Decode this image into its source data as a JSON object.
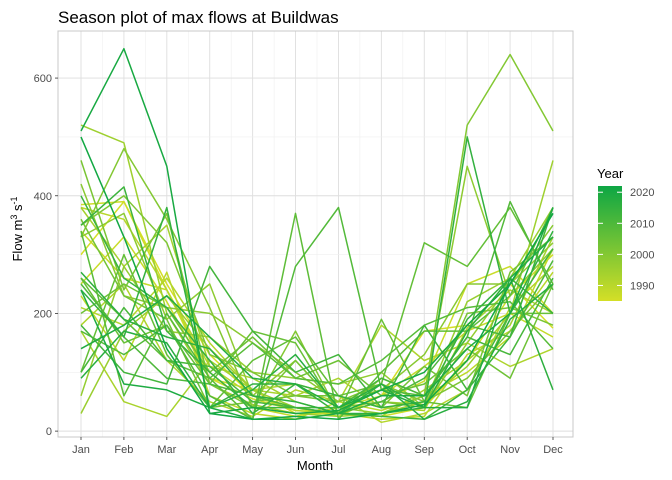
{
  "chart_data": {
    "type": "line",
    "title": "Season plot of max flows at Buildwas",
    "xlabel": "Month",
    "ylabel": {
      "base": "Flow m",
      "sup1": "3",
      "mid": " s",
      "sup2": "-1"
    },
    "categories": [
      "Jan",
      "Feb",
      "Mar",
      "Apr",
      "May",
      "Jun",
      "Jul",
      "Aug",
      "Sep",
      "Oct",
      "Nov",
      "Dec"
    ],
    "y_ticks": [
      0,
      200,
      400,
      600
    ],
    "ylim": [
      -10,
      680
    ],
    "grid": true,
    "legend": {
      "title": "Year",
      "placement": "right",
      "ticks": [
        1990,
        2000,
        2010,
        2020
      ],
      "range": [
        1985,
        2022
      ],
      "color_low": "#d4df27",
      "color_high": "#0da644"
    },
    "series": [
      {
        "year": 1985,
        "values": [
          300,
          390,
          250,
          130,
          60,
          40,
          25,
          60,
          170,
          180,
          250,
          175
        ]
      },
      {
        "year": 1986,
        "values": [
          385,
          390,
          240,
          90,
          55,
          35,
          30,
          25,
          40,
          120,
          230,
          300
        ]
      },
      {
        "year": 1987,
        "values": [
          250,
          330,
          220,
          90,
          70,
          30,
          30,
          50,
          85,
          250,
          280,
          200
        ]
      },
      {
        "year": 1988,
        "values": [
          340,
          260,
          240,
          100,
          40,
          25,
          40,
          60,
          110,
          170,
          200,
          160
        ]
      },
      {
        "year": 1989,
        "values": [
          230,
          120,
          270,
          60,
          30,
          20,
          50,
          35,
          60,
          100,
          160,
          310
        ]
      },
      {
        "year": 1990,
        "values": [
          380,
          360,
          240,
          110,
          60,
          35,
          30,
          20,
          25,
          130,
          170,
          270
        ]
      },
      {
        "year": 1991,
        "values": [
          210,
          180,
          260,
          150,
          70,
          80,
          60,
          15,
          30,
          70,
          210,
          280
        ]
      },
      {
        "year": 1992,
        "values": [
          180,
          250,
          120,
          50,
          25,
          70,
          50,
          180,
          120,
          150,
          110,
          140
        ]
      },
      {
        "year": 1993,
        "values": [
          170,
          50,
          25,
          120,
          70,
          60,
          90,
          40,
          35,
          175,
          240,
          200
        ]
      },
      {
        "year": 1994,
        "values": [
          380,
          280,
          350,
          110,
          90,
          50,
          30,
          25,
          70,
          120,
          180,
          330
        ]
      },
      {
        "year": 1995,
        "values": [
          520,
          490,
          200,
          80,
          45,
          30,
          25,
          30,
          50,
          110,
          200,
          460
        ]
      },
      {
        "year": 1996,
        "values": [
          30,
          170,
          230,
          140,
          70,
          40,
          30,
          50,
          45,
          220,
          260,
          380
        ]
      },
      {
        "year": 1997,
        "values": [
          60,
          280,
          170,
          160,
          100,
          90,
          80,
          100,
          40,
          150,
          250,
          320
        ]
      },
      {
        "year": 1998,
        "values": [
          330,
          370,
          190,
          250,
          60,
          120,
          40,
          30,
          60,
          450,
          230,
          310
        ]
      },
      {
        "year": 1999,
        "values": [
          420,
          230,
          210,
          200,
          150,
          100,
          50,
          70,
          130,
          250,
          250,
          350
        ]
      },
      {
        "year": 2000,
        "values": [
          330,
          480,
          360,
          210,
          40,
          170,
          30,
          90,
          60,
          520,
          640,
          510
        ]
      },
      {
        "year": 2001,
        "values": [
          350,
          400,
          320,
          130,
          100,
          60,
          50,
          80,
          50,
          90,
          170,
          250
        ]
      },
      {
        "year": 2002,
        "values": [
          460,
          240,
          370,
          80,
          40,
          120,
          40,
          50,
          40,
          200,
          210,
          180
        ]
      },
      {
        "year": 2003,
        "values": [
          360,
          230,
          190,
          40,
          50,
          60,
          60,
          40,
          110,
          60,
          270,
          330
        ]
      },
      {
        "year": 2004,
        "values": [
          200,
          250,
          210,
          100,
          160,
          90,
          120,
          60,
          80,
          140,
          90,
          250
        ]
      },
      {
        "year": 2005,
        "values": [
          260,
          150,
          180,
          80,
          170,
          150,
          30,
          190,
          50,
          40,
          200,
          200
        ]
      },
      {
        "year": 2006,
        "values": [
          100,
          300,
          130,
          40,
          120,
          160,
          60,
          80,
          320,
          280,
          380,
          250
        ]
      },
      {
        "year": 2007,
        "values": [
          260,
          190,
          120,
          90,
          20,
          370,
          20,
          100,
          170,
          170,
          230,
          380
        ]
      },
      {
        "year": 2008,
        "values": [
          340,
          60,
          200,
          90,
          150,
          90,
          80,
          120,
          180,
          210,
          220,
          140
        ]
      },
      {
        "year": 2009,
        "values": [
          170,
          130,
          180,
          60,
          20,
          280,
          380,
          70,
          60,
          160,
          390,
          240
        ]
      },
      {
        "year": 2010,
        "values": [
          250,
          160,
          90,
          80,
          60,
          40,
          30,
          50,
          90,
          180,
          160,
          290
        ]
      },
      {
        "year": 2011,
        "values": [
          100,
          210,
          120,
          110,
          50,
          40,
          40,
          90,
          60,
          160,
          130,
          260
        ]
      },
      {
        "year": 2012,
        "values": [
          180,
          100,
          80,
          280,
          170,
          100,
          130,
          40,
          180,
          70,
          200,
          310
        ]
      },
      {
        "year": 2013,
        "values": [
          350,
          415,
          170,
          100,
          40,
          40,
          30,
          25,
          20,
          70,
          160,
          380
        ]
      },
      {
        "year": 2014,
        "values": [
          400,
          260,
          210,
          120,
          30,
          80,
          60,
          40,
          50,
          190,
          260,
          200
        ]
      },
      {
        "year": 2015,
        "values": [
          240,
          160,
          380,
          40,
          80,
          80,
          30,
          80,
          40,
          500,
          200,
          340
        ]
      },
      {
        "year": 2016,
        "values": [
          270,
          190,
          160,
          140,
          60,
          50,
          30,
          30,
          40,
          170,
          260,
          70
        ]
      },
      {
        "year": 2017,
        "values": [
          90,
          170,
          150,
          40,
          70,
          130,
          40,
          80,
          20,
          50,
          190,
          250
        ]
      },
      {
        "year": 2018,
        "values": [
          140,
          180,
          230,
          160,
          90,
          80,
          40,
          70,
          40,
          40,
          260,
          330
        ]
      },
      {
        "year": 2019,
        "values": [
          240,
          80,
          70,
          40,
          20,
          20,
          30,
          60,
          60,
          140,
          200,
          380
        ]
      },
      {
        "year": 2020,
        "values": [
          510,
          650,
          450,
          30,
          40,
          30,
          35,
          70,
          100,
          180,
          250,
          370
        ]
      },
      {
        "year": 2021,
        "values": [
          500,
          330,
          140,
          30,
          20,
          25,
          20,
          30,
          45,
          120,
          250,
          370
        ]
      }
    ]
  }
}
